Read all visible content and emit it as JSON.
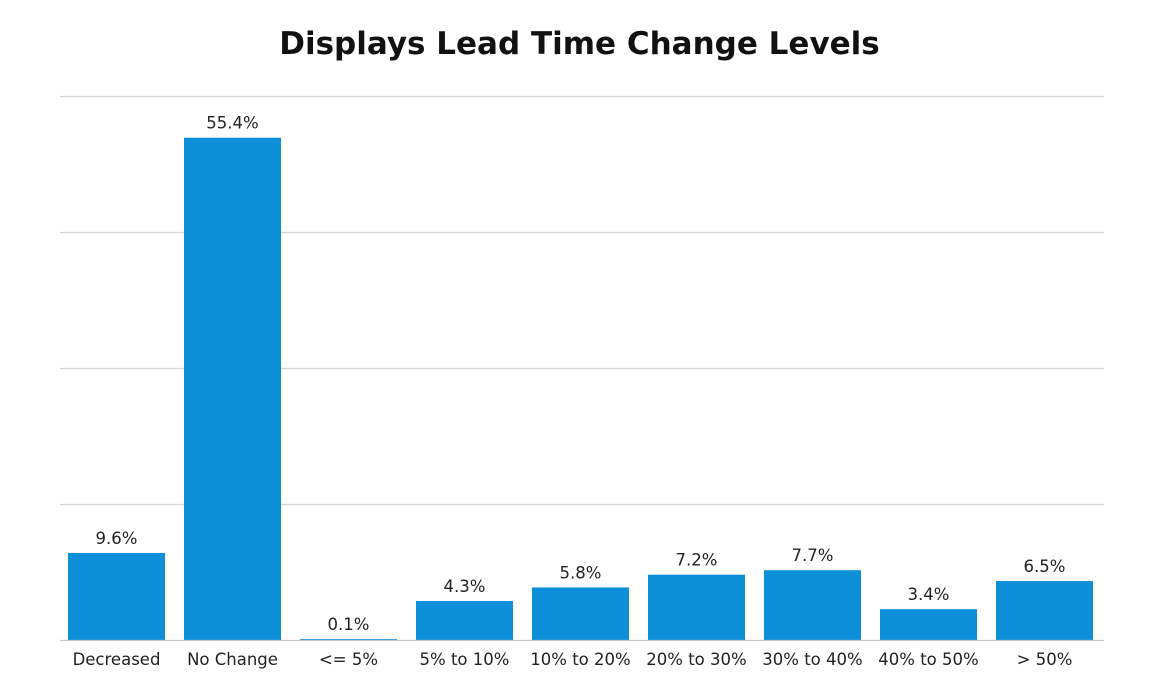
{
  "chart_data": {
    "type": "bar",
    "title": "Displays Lead Time Change Levels",
    "xlabel": "",
    "ylabel": "",
    "categories": [
      "Decreased",
      "No Change",
      "<= 5%",
      "5% to 10%",
      "10% to 20%",
      "20% to 30%",
      "30% to 40%",
      "40% to 50%",
      "> 50%"
    ],
    "values": [
      9.6,
      55.4,
      0.1,
      4.3,
      5.8,
      7.2,
      7.7,
      3.4,
      6.5
    ],
    "data_labels": [
      "9.6%",
      "55.4%",
      "0.1%",
      "4.3%",
      "5.8%",
      "7.2%",
      "7.7%",
      "3.4%",
      "6.5%"
    ],
    "ylim": [
      0,
      60
    ],
    "gridlines": [
      15,
      30,
      45,
      60
    ],
    "grid": true,
    "legend": "none",
    "colors": {
      "bar": "#0e8fd9",
      "grid": "#d3d3d3",
      "axis": "#c8c8c8",
      "text": "#222222"
    }
  }
}
